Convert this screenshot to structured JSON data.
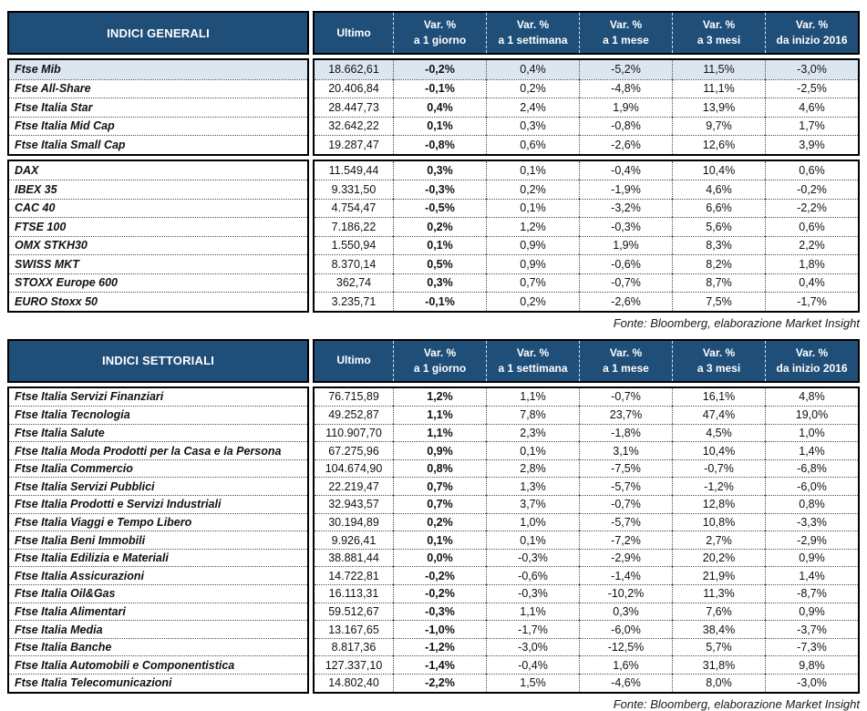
{
  "columns": {
    "ultimo": "Ultimo",
    "vars": [
      {
        "line1": "Var. %",
        "line2": "a 1 giorno"
      },
      {
        "line1": "Var. %",
        "line2": "a 1 settimana"
      },
      {
        "line1": "Var. %",
        "line2": "a 1 mese"
      },
      {
        "line1": "Var. %",
        "line2": "a 3 mesi"
      },
      {
        "line1": "Var. %",
        "line2": "da inizio 2016"
      }
    ]
  },
  "colors": {
    "header_bg": "#1F4E79",
    "highlight_row_bg": "#DCE6F1"
  },
  "tables": [
    {
      "id": "indici-generali",
      "title": "INDICI GENERALI",
      "source_note": "Fonte: Bloomberg, elaborazione Market Insight",
      "groups": [
        {
          "rows": [
            {
              "name": "Ftse Mib",
              "highlight": true,
              "values": [
                "18.662,61",
                "-0,2%",
                "0,4%",
                "-5,2%",
                "11,5%",
                "-3,0%"
              ]
            },
            {
              "name": "Ftse All-Share",
              "values": [
                "20.406,84",
                "-0,1%",
                "0,2%",
                "-4,8%",
                "11,1%",
                "-2,5%"
              ]
            },
            {
              "name": "Ftse Italia Star",
              "values": [
                "28.447,73",
                "0,4%",
                "2,4%",
                "1,9%",
                "13,9%",
                "4,6%"
              ]
            },
            {
              "name": "Ftse Italia Mid Cap",
              "values": [
                "32.642,22",
                "0,1%",
                "0,3%",
                "-0,8%",
                "9,7%",
                "1,7%"
              ]
            },
            {
              "name": "Ftse Italia Small Cap",
              "values": [
                "19.287,47",
                "-0,8%",
                "0,6%",
                "-2,6%",
                "12,6%",
                "3,9%"
              ]
            }
          ]
        },
        {
          "rows": [
            {
              "name": "DAX",
              "values": [
                "11.549,44",
                "0,3%",
                "0,1%",
                "-0,4%",
                "10,4%",
                "0,6%"
              ]
            },
            {
              "name": "IBEX 35",
              "values": [
                "9.331,50",
                "-0,3%",
                "0,2%",
                "-1,9%",
                "4,6%",
                "-0,2%"
              ]
            },
            {
              "name": "CAC 40",
              "values": [
                "4.754,47",
                "-0,5%",
                "0,1%",
                "-3,2%",
                "6,6%",
                "-2,2%"
              ]
            },
            {
              "name": "FTSE 100",
              "values": [
                "7.186,22",
                "0,2%",
                "1,2%",
                "-0,3%",
                "5,6%",
                "0,6%"
              ]
            },
            {
              "name": "OMX STKH30",
              "values": [
                "1.550,94",
                "0,1%",
                "0,9%",
                "1,9%",
                "8,3%",
                "2,2%"
              ]
            },
            {
              "name": "SWISS MKT",
              "values": [
                "8.370,14",
                "0,5%",
                "0,9%",
                "-0,6%",
                "8,2%",
                "1,8%"
              ]
            },
            {
              "name": "STOXX Europe 600",
              "values": [
                "362,74",
                "0,3%",
                "0,7%",
                "-0,7%",
                "8,7%",
                "0,4%"
              ]
            },
            {
              "name": "EURO Stoxx 50",
              "values": [
                "3.235,71",
                "-0,1%",
                "0,2%",
                "-2,6%",
                "7,5%",
                "-1,7%"
              ]
            }
          ]
        }
      ]
    },
    {
      "id": "indici-settoriali",
      "title": "INDICI SETTORIALI",
      "source_note": "Fonte: Bloomberg, elaborazione Market Insight",
      "groups": [
        {
          "rows": [
            {
              "name": "Ftse Italia Servizi Finanziari",
              "values": [
                "76.715,89",
                "1,2%",
                "1,1%",
                "-0,7%",
                "16,1%",
                "4,8%"
              ]
            },
            {
              "name": "Ftse Italia Tecnologia",
              "values": [
                "49.252,87",
                "1,1%",
                "7,8%",
                "23,7%",
                "47,4%",
                "19,0%"
              ]
            },
            {
              "name": "Ftse Italia Salute",
              "values": [
                "110.907,70",
                "1,1%",
                "2,3%",
                "-1,8%",
                "4,5%",
                "1,0%"
              ]
            },
            {
              "name": "Ftse Italia Moda Prodotti per la Casa e la Persona",
              "values": [
                "67.275,96",
                "0,9%",
                "0,1%",
                "3,1%",
                "10,4%",
                "1,4%"
              ]
            },
            {
              "name": "Ftse Italia Commercio",
              "values": [
                "104.674,90",
                "0,8%",
                "2,8%",
                "-7,5%",
                "-0,7%",
                "-6,8%"
              ]
            },
            {
              "name": "Ftse Italia Servizi Pubblici",
              "values": [
                "22.219,47",
                "0,7%",
                "1,3%",
                "-5,7%",
                "-1,2%",
                "-6,0%"
              ]
            },
            {
              "name": "Ftse Italia Prodotti e Servizi Industriali",
              "values": [
                "32.943,57",
                "0,7%",
                "3,7%",
                "-0,7%",
                "12,8%",
                "0,8%"
              ]
            },
            {
              "name": "Ftse Italia Viaggi e Tempo Libero",
              "values": [
                "30.194,89",
                "0,2%",
                "1,0%",
                "-5,7%",
                "10,8%",
                "-3,3%"
              ]
            },
            {
              "name": "Ftse Italia Beni Immobili",
              "values": [
                "9.926,41",
                "0,1%",
                "0,1%",
                "-7,2%",
                "2,7%",
                "-2,9%"
              ]
            },
            {
              "name": "Ftse Italia Edilizia e Materiali",
              "values": [
                "38.881,44",
                "0,0%",
                "-0,3%",
                "-2,9%",
                "20,2%",
                "0,9%"
              ]
            },
            {
              "name": "Ftse Italia Assicurazioni",
              "values": [
                "14.722,81",
                "-0,2%",
                "-0,6%",
                "-1,4%",
                "21,9%",
                "1,4%"
              ]
            },
            {
              "name": "Ftse Italia Oil&Gas",
              "values": [
                "16.113,31",
                "-0,2%",
                "-0,3%",
                "-10,2%",
                "11,3%",
                "-8,7%"
              ]
            },
            {
              "name": "Ftse Italia Alimentari",
              "values": [
                "59.512,67",
                "-0,3%",
                "1,1%",
                "0,3%",
                "7,6%",
                "0,9%"
              ]
            },
            {
              "name": "Ftse Italia Media",
              "values": [
                "13.167,65",
                "-1,0%",
                "-1,7%",
                "-6,0%",
                "38,4%",
                "-3,7%"
              ]
            },
            {
              "name": "Ftse Italia Banche",
              "values": [
                "8.817,36",
                "-1,2%",
                "-3,0%",
                "-12,5%",
                "5,7%",
                "-7,3%"
              ]
            },
            {
              "name": "Ftse Italia Automobili e Componentistica",
              "values": [
                "127.337,10",
                "-1,4%",
                "-0,4%",
                "1,6%",
                "31,8%",
                "9,8%"
              ]
            },
            {
              "name": "Ftse Italia Telecomunicazioni",
              "values": [
                "14.802,40",
                "-2,2%",
                "1,5%",
                "-4,6%",
                "8,0%",
                "-3,0%"
              ]
            }
          ]
        }
      ]
    }
  ]
}
